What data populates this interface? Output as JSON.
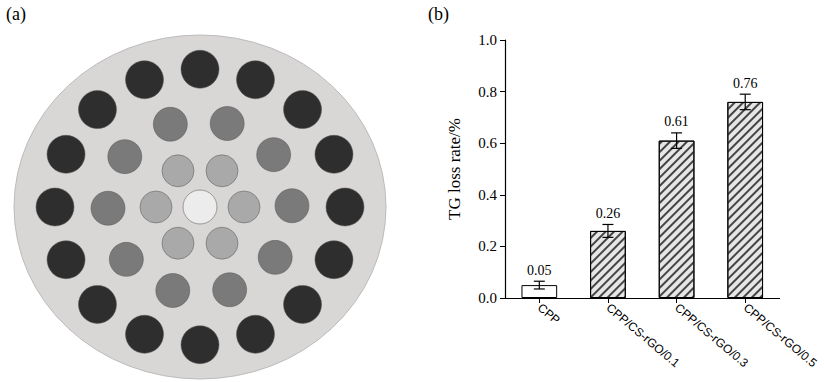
{
  "panel_labels": {
    "a": "(a)",
    "b": "(b)"
  },
  "chart_data": {
    "type": "bar",
    "y_label": "TG loss rate/%",
    "categories": [
      "CPP",
      "CPP/CS-rGO/0.1",
      "CPP/CS-rGO/0.3",
      "CPP/CS-rGO/0.5"
    ],
    "values": [
      0.05,
      0.26,
      0.61,
      0.76
    ],
    "errors": [
      0.015,
      0.025,
      0.03,
      0.03
    ],
    "colors": [
      "#ffffff",
      "#e6e6e6",
      "#e6e6e6",
      "#e6e6e6"
    ],
    "ylim": [
      0,
      1
    ],
    "yticks": [
      {
        "value": 0,
        "label": "0.0"
      },
      0.2,
      0.4,
      0.6,
      0.8,
      {
        "value": 1,
        "label": "1.0"
      }
    ],
    "grid": false,
    "data_labels": true
  }
}
